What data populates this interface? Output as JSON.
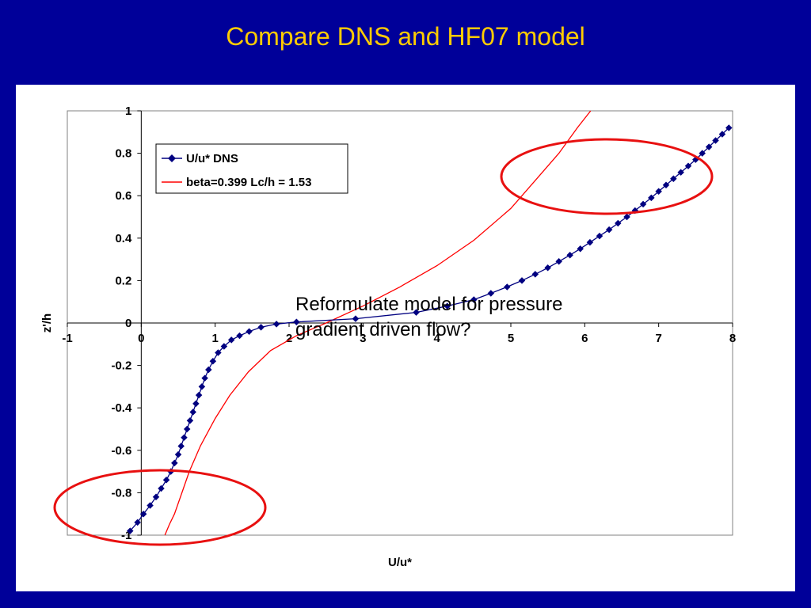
{
  "slide": {
    "title": "Compare DNS and HF07 model",
    "annotation_line1": "Reformulate model for pressure",
    "annotation_line2": "gradient driven flow?"
  },
  "colors": {
    "background": "#000099",
    "title": "#FFCC00",
    "dns_series": "#000080",
    "model_series": "#FF0000",
    "highlight_ellipse": "#E81010"
  },
  "chart_data": {
    "type": "line",
    "title": "",
    "xlabel": "U/u*",
    "ylabel": "z'/h",
    "xlim": [
      -1,
      8
    ],
    "ylim": [
      -1,
      1
    ],
    "xticks": [
      "-1",
      "0",
      "1",
      "2",
      "3",
      "4",
      "5",
      "6",
      "7",
      "8"
    ],
    "yticks": [
      "-1",
      "-0.8",
      "-0.6",
      "-0.4",
      "-0.2",
      "0",
      "0.2",
      "0.4",
      "0.6",
      "0.8",
      "1"
    ],
    "grid": false,
    "legend_position": "top-left",
    "series": [
      {
        "name": "U/u* DNS",
        "marker": "diamond",
        "x": [
          -0.15,
          -0.05,
          0.03,
          0.12,
          0.2,
          0.27,
          0.34,
          0.4,
          0.45,
          0.5,
          0.54,
          0.58,
          0.62,
          0.66,
          0.7,
          0.74,
          0.78,
          0.82,
          0.86,
          0.91,
          0.97,
          1.04,
          1.12,
          1.22,
          1.33,
          1.46,
          1.62,
          1.83,
          2.1,
          2.9,
          3.72,
          4.14,
          4.5,
          4.73,
          4.95,
          5.15,
          5.33,
          5.5,
          5.65,
          5.8,
          5.94,
          6.07,
          6.2,
          6.33,
          6.45,
          6.57,
          6.68,
          6.79,
          6.9,
          7.0,
          7.1,
          7.2,
          7.3,
          7.4,
          7.5,
          7.59,
          7.68,
          7.77,
          7.86,
          7.95
        ],
        "y": [
          -0.98,
          -0.94,
          -0.9,
          -0.86,
          -0.82,
          -0.78,
          -0.74,
          -0.7,
          -0.66,
          -0.62,
          -0.58,
          -0.54,
          -0.5,
          -0.46,
          -0.42,
          -0.38,
          -0.34,
          -0.3,
          -0.26,
          -0.22,
          -0.18,
          -0.14,
          -0.11,
          -0.08,
          -0.06,
          -0.04,
          -0.02,
          -0.005,
          0.005,
          0.02,
          0.05,
          0.08,
          0.11,
          0.14,
          0.17,
          0.2,
          0.23,
          0.26,
          0.29,
          0.32,
          0.35,
          0.38,
          0.41,
          0.44,
          0.47,
          0.5,
          0.53,
          0.56,
          0.59,
          0.62,
          0.65,
          0.68,
          0.71,
          0.74,
          0.77,
          0.8,
          0.83,
          0.86,
          0.89,
          0.92
        ]
      },
      {
        "name": "beta=0.399 Lc/h = 1.53",
        "marker": "none",
        "x": [
          0.32,
          0.38,
          0.45,
          0.55,
          0.65,
          0.8,
          1.0,
          1.2,
          1.45,
          1.75,
          2.1,
          2.5,
          3.0,
          3.5,
          4.0,
          4.5,
          5.0,
          5.35,
          5.65,
          5.9,
          6.08
        ],
        "y": [
          -1.0,
          -0.95,
          -0.9,
          -0.8,
          -0.7,
          -0.58,
          -0.45,
          -0.34,
          -0.23,
          -0.13,
          -0.06,
          0.0,
          0.08,
          0.17,
          0.27,
          0.39,
          0.54,
          0.68,
          0.8,
          0.92,
          1.0
        ]
      }
    ]
  }
}
